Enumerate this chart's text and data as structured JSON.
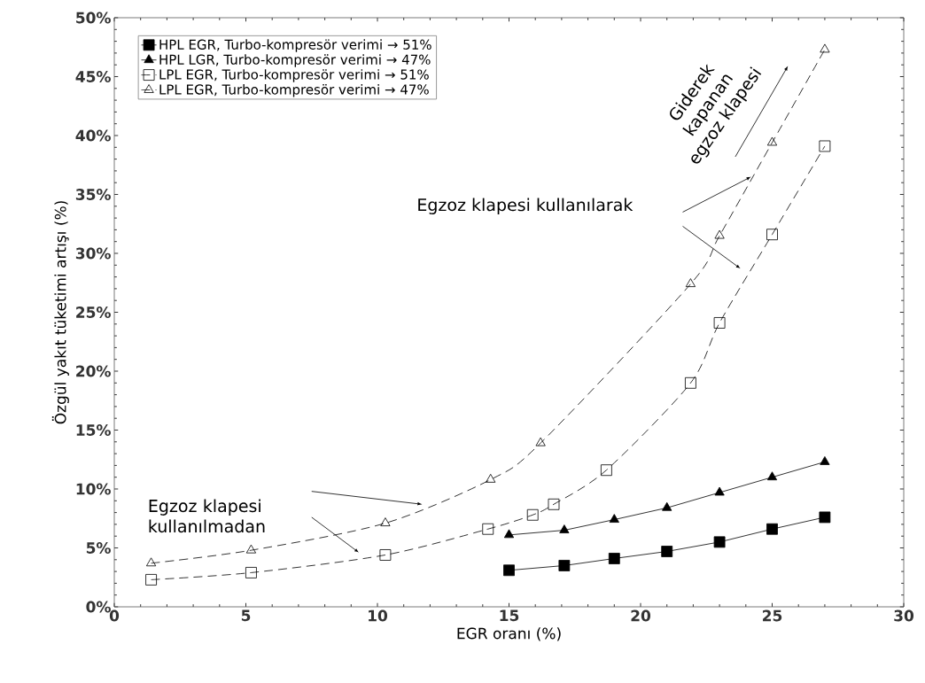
{
  "chart_data": {
    "type": "line",
    "xlabel": "EGR oranı (%)",
    "ylabel": "Özgül yakıt tüketimi artışı (%)",
    "xlim": [
      0,
      30
    ],
    "xticks": [
      0,
      5,
      10,
      15,
      20,
      25,
      30
    ],
    "ylim": [
      0,
      50
    ],
    "yticks": [
      {
        "value": 0,
        "label": "0%"
      },
      {
        "value": 5,
        "label": "5%"
      },
      {
        "value": 10,
        "label": "10%"
      },
      {
        "value": 15,
        "label": "15%"
      },
      {
        "value": 20,
        "label": "20%"
      },
      {
        "value": 25,
        "label": "25%"
      },
      {
        "value": 30,
        "label": "30%"
      },
      {
        "value": 35,
        "label": "35%"
      },
      {
        "value": 40,
        "label": "40%"
      },
      {
        "value": 45,
        "label": "45%"
      },
      {
        "value": 50,
        "label": "50%"
      }
    ],
    "grid": false,
    "legend": "top left",
    "series": [
      {
        "name": "HPL EGR, Turbo-kompresör verimi → 51%",
        "color": "#000000",
        "marker": "square",
        "line_style": "solid",
        "x": [
          15,
          17.1,
          19,
          21,
          23,
          25,
          27
        ],
        "values": [
          3.1,
          3.5,
          4.1,
          4.7,
          5.5,
          6.6,
          7.6
        ]
      },
      {
        "name": "HPL LGR, Turbo-kompresör verimi → 47%",
        "color": "#000000",
        "marker": "triangle",
        "line_style": "solid",
        "x": [
          15,
          17.1,
          19,
          21,
          23,
          25,
          27
        ],
        "values": [
          6.1,
          6.5,
          7.4,
          8.4,
          9.7,
          11.0,
          12.3
        ]
      },
      {
        "name": "LPL EGR, Turbo-kompresör verimi → 51%",
        "color": "#000000",
        "marker": "square",
        "line_style": "dashed",
        "x": [
          1.4,
          5.2,
          10.3,
          14.2,
          15.9,
          16.7,
          18.7,
          21.9,
          23,
          25,
          27
        ],
        "values": [
          2.3,
          2.9,
          4.4,
          6.6,
          7.8,
          8.7,
          11.6,
          19.0,
          24.1,
          31.6,
          39.1
        ]
      },
      {
        "name": "LPL EGR, Turbo-kompresör verimi → 47%",
        "color": "#000000",
        "marker": "triangle",
        "line_style": "dashed",
        "x": [
          1.4,
          5.2,
          10.3,
          14.3,
          16.2,
          21.9,
          23,
          25,
          27
        ],
        "values": [
          3.7,
          4.8,
          7.1,
          10.8,
          13.9,
          27.4,
          31.5,
          39.4,
          47.3
        ]
      }
    ],
    "annotations": [
      "Egzoz klapesi kullanılmadan",
      "Egzoz klapesi kullanılarak",
      "Giderek kapanan egzoz klapesi"
    ]
  }
}
